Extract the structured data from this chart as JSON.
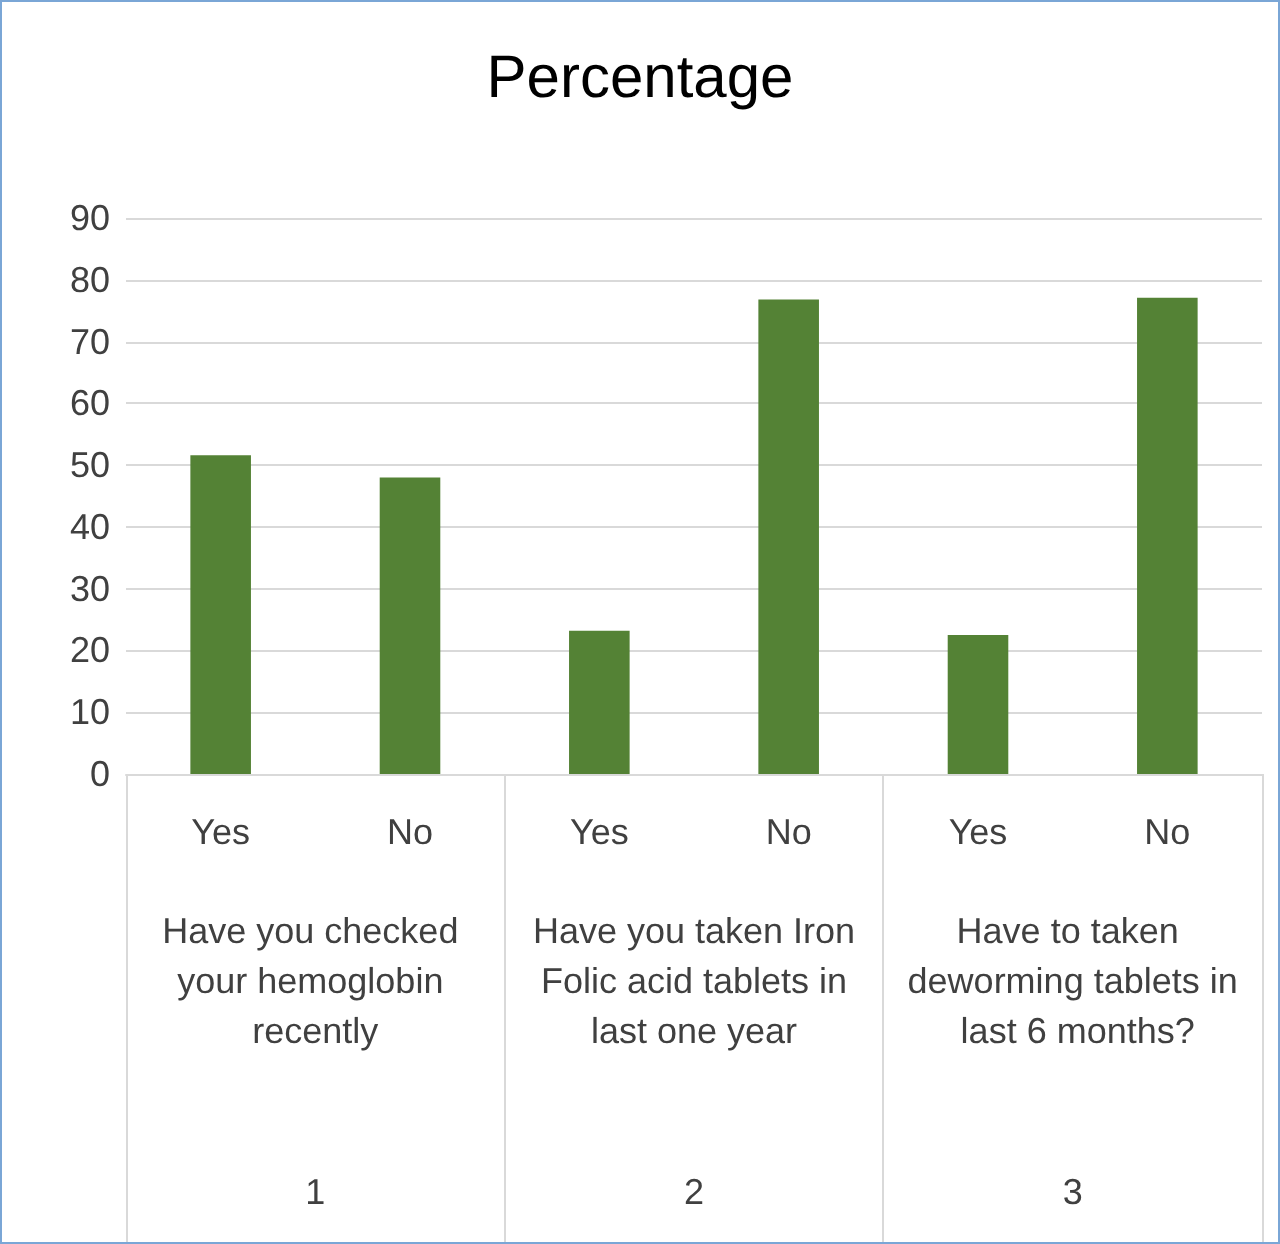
{
  "chart_data": {
    "type": "bar",
    "title": "Percentage",
    "categories": [
      "Yes",
      "No",
      "Yes",
      "No",
      "Yes",
      "No"
    ],
    "values": [
      51.6,
      48.0,
      23.2,
      76.8,
      22.5,
      77.1
    ],
    "color": "#548235",
    "ylim": [
      0,
      90
    ],
    "yticks": [
      0,
      10,
      20,
      30,
      40,
      50,
      60,
      70,
      80,
      90
    ],
    "grid": "y",
    "annotations": [
      "Have you checked your hemoglobin recently",
      "Have you taken Iron Folic acid tablets in last one year",
      "Have to taken deworming tablets in last 6 months?",
      "1",
      "2",
      "3"
    ]
  }
}
